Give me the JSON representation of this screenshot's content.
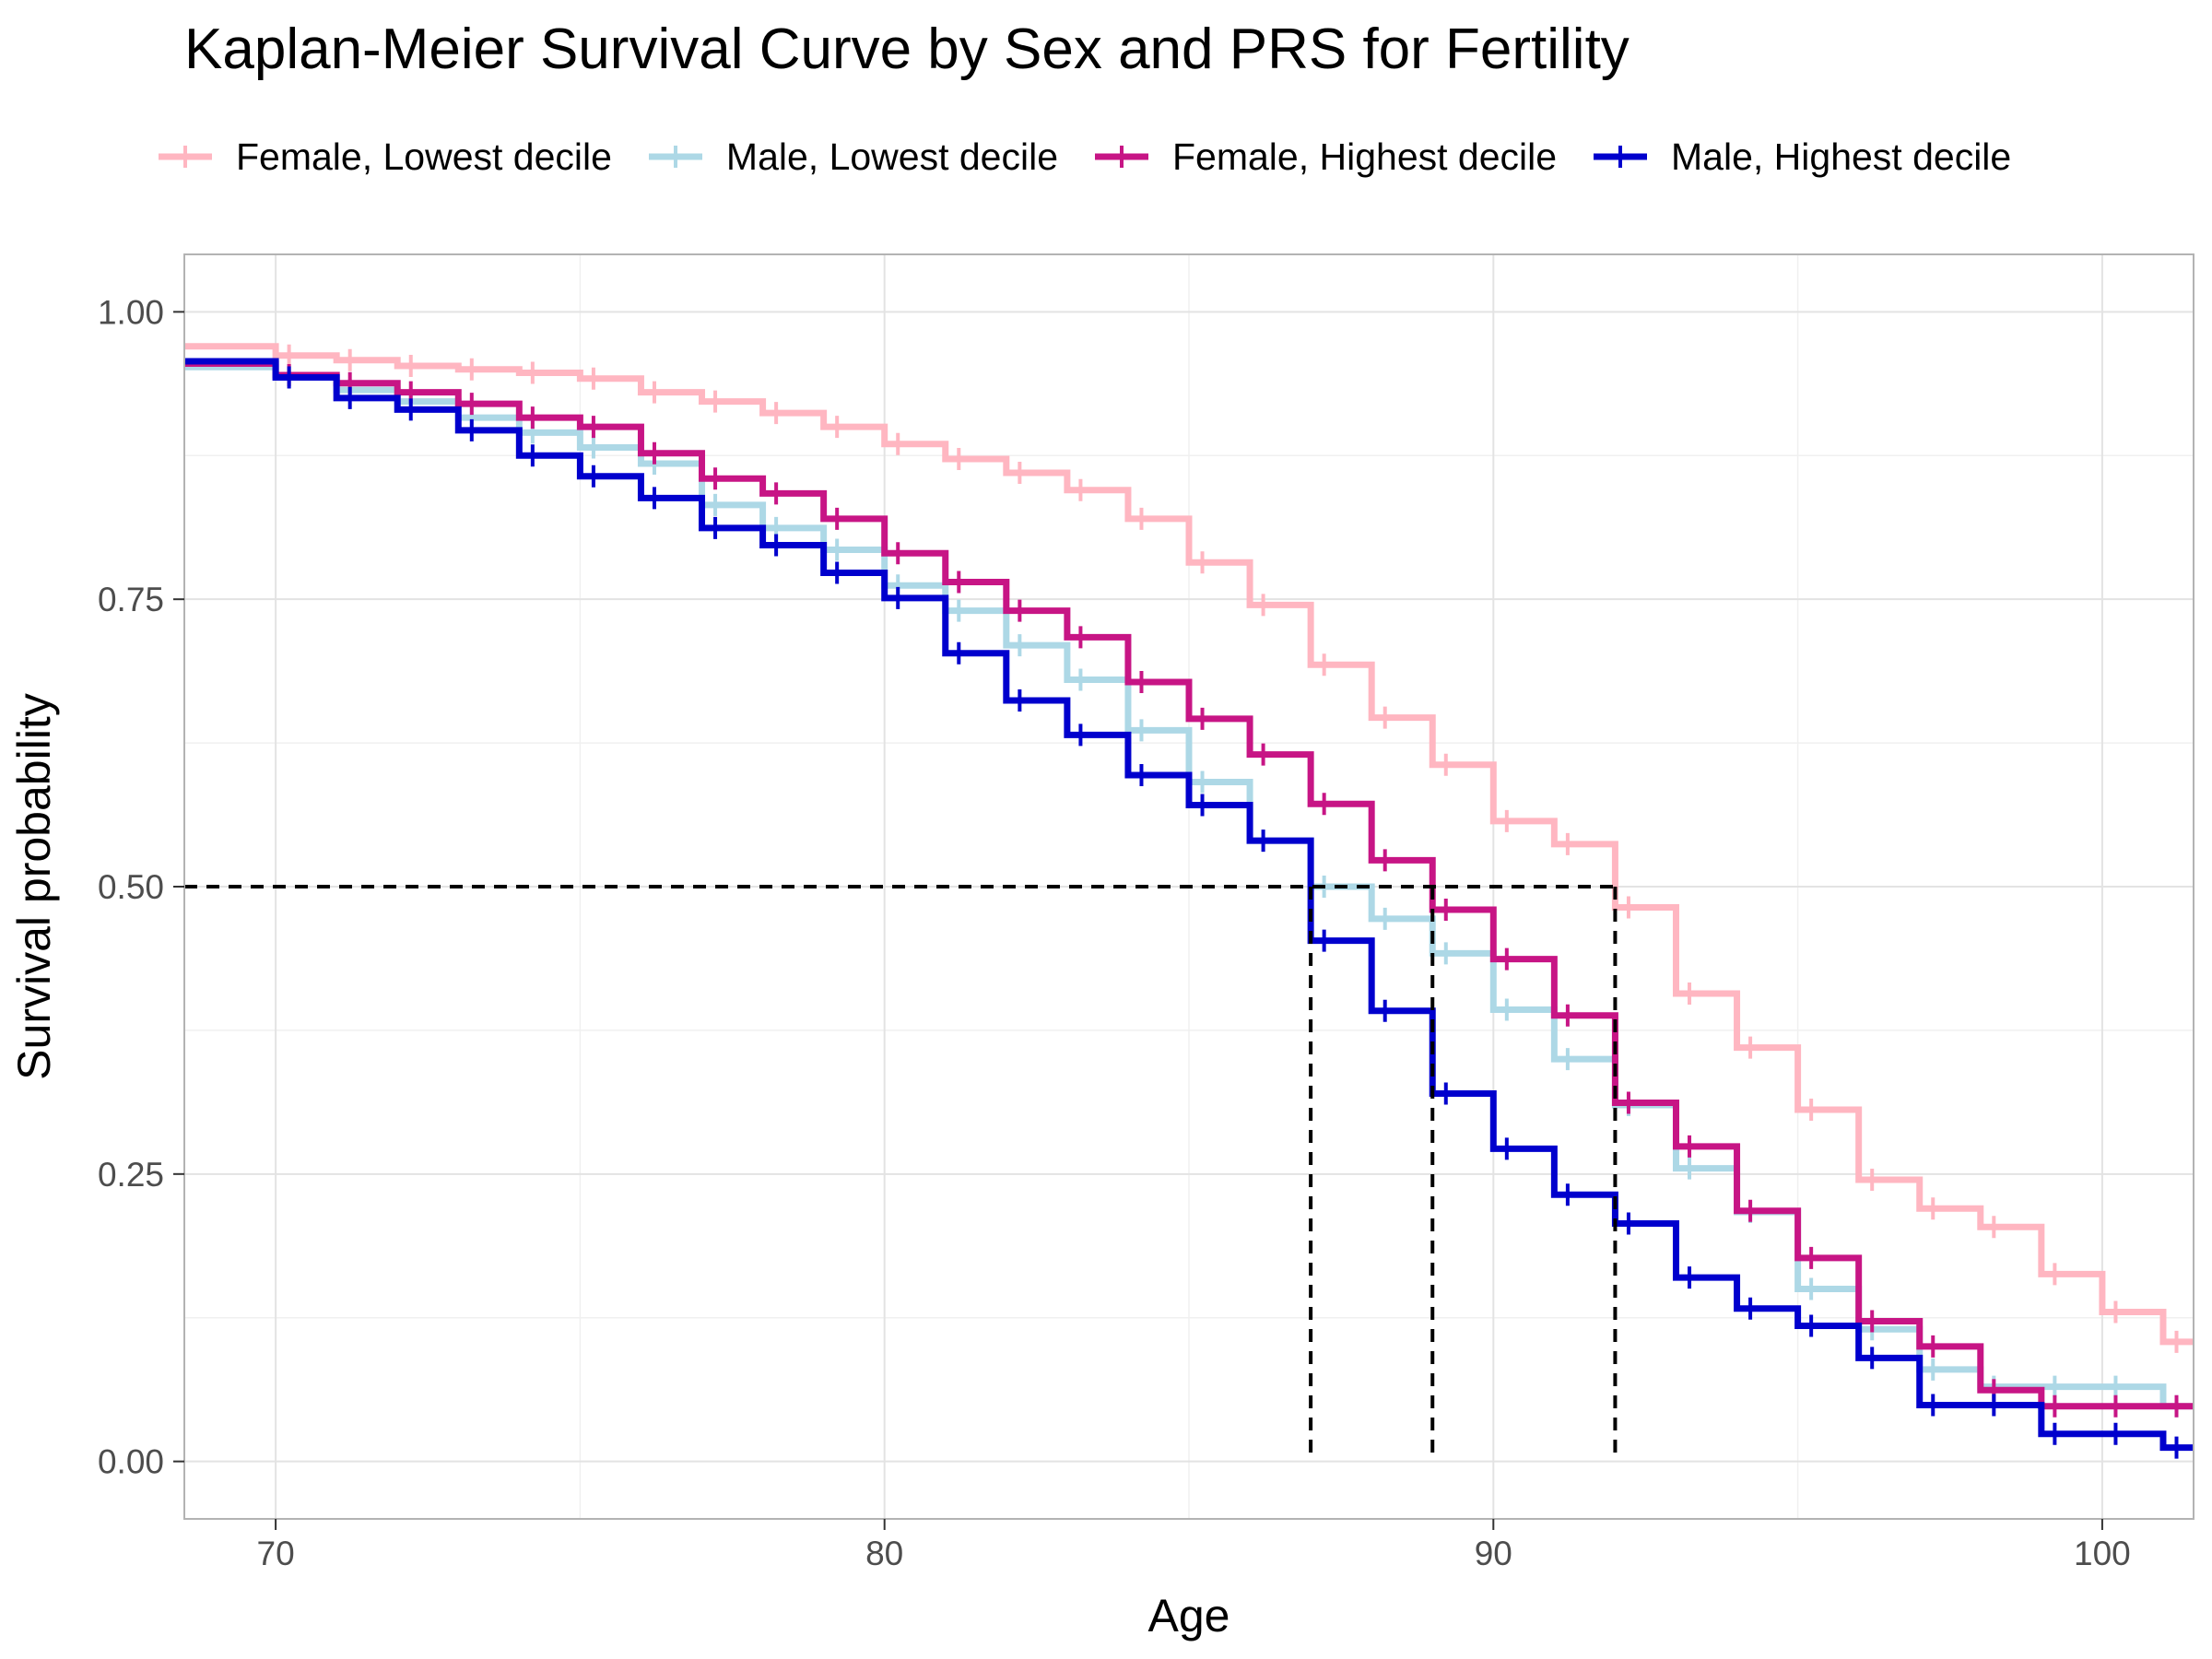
{
  "chart_data": {
    "type": "line",
    "step": true,
    "title": "Kaplan-Meier Survival Curve by Sex and PRS for Fertility",
    "xlabel": "Age",
    "ylabel": "Survival probability",
    "xlim": [
      68.5,
      101.5
    ],
    "ylim": [
      -0.05,
      1.05
    ],
    "x_ticks": [
      70,
      80,
      90,
      100
    ],
    "x_tick_labels": [
      "70",
      "80",
      "90",
      "100"
    ],
    "y_ticks": [
      0,
      0.25,
      0.5,
      0.75,
      1.0
    ],
    "y_tick_labels": [
      "0.00",
      "0.25",
      "0.50",
      "0.75",
      "1.00"
    ],
    "grid": true,
    "legend_position": "top",
    "median_line": {
      "y": 0.5,
      "x_values": [
        87,
        89,
        92
      ]
    },
    "series": [
      {
        "name": "Female, Lowest decile",
        "color": "#FFB6C1",
        "x": [
          68.5,
          70,
          71,
          72,
          73,
          74,
          75,
          76,
          77,
          78,
          79,
          80,
          81,
          82,
          83,
          84,
          85,
          86,
          87,
          88,
          89,
          90,
          91,
          92,
          93,
          94,
          95,
          96,
          97,
          98,
          99,
          100,
          101,
          101.5
        ],
        "y": [
          0.97,
          0.962,
          0.958,
          0.953,
          0.95,
          0.947,
          0.942,
          0.93,
          0.922,
          0.912,
          0.9,
          0.885,
          0.872,
          0.86,
          0.845,
          0.82,
          0.782,
          0.745,
          0.693,
          0.647,
          0.606,
          0.557,
          0.537,
          0.482,
          0.407,
          0.36,
          0.306,
          0.245,
          0.22,
          0.204,
          0.163,
          0.13,
          0.104,
          0.104
        ]
      },
      {
        "name": "Male, Lowest decile",
        "color": "#ADD8E6",
        "x": [
          68.5,
          70,
          71,
          72,
          73,
          74,
          75,
          76,
          77,
          78,
          79,
          80,
          81,
          82,
          83,
          84,
          85,
          86,
          87,
          88,
          89,
          90,
          91,
          92,
          93,
          94,
          95,
          96,
          97,
          98,
          99,
          100,
          101,
          101.5
        ],
        "y": [
          0.952,
          0.945,
          0.932,
          0.922,
          0.908,
          0.895,
          0.882,
          0.868,
          0.832,
          0.812,
          0.793,
          0.762,
          0.74,
          0.71,
          0.68,
          0.636,
          0.591,
          0.54,
          0.5,
          0.472,
          0.442,
          0.393,
          0.35,
          0.31,
          0.255,
          0.217,
          0.15,
          0.115,
          0.08,
          0.065,
          0.065,
          0.065,
          0.048,
          0.048
        ]
      },
      {
        "name": "Female, Highest decile",
        "color": "#C71585",
        "x": [
          68.5,
          70,
          71,
          72,
          73,
          74,
          75,
          76,
          77,
          78,
          79,
          80,
          81,
          82,
          83,
          84,
          85,
          86,
          87,
          88,
          89,
          90,
          91,
          92,
          93,
          94,
          95,
          96,
          97,
          98,
          99,
          100,
          101,
          101.5
        ],
        "y": [
          0.955,
          0.945,
          0.938,
          0.93,
          0.92,
          0.908,
          0.9,
          0.877,
          0.855,
          0.842,
          0.82,
          0.79,
          0.765,
          0.74,
          0.717,
          0.678,
          0.646,
          0.615,
          0.572,
          0.523,
          0.48,
          0.437,
          0.388,
          0.312,
          0.274,
          0.218,
          0.177,
          0.122,
          0.1,
          0.062,
          0.048,
          0.048,
          0.048,
          0.048
        ]
      },
      {
        "name": "Male, Highest decile",
        "color": "#0000CD",
        "x": [
          68.5,
          70,
          71,
          72,
          73,
          74,
          75,
          76,
          77,
          78,
          79,
          80,
          81,
          82,
          83,
          84,
          85,
          86,
          87,
          88,
          89,
          90,
          91,
          92,
          93,
          94,
          95,
          96,
          97,
          98,
          99,
          100,
          101,
          101.5
        ],
        "y": [
          0.957,
          0.943,
          0.925,
          0.915,
          0.897,
          0.875,
          0.857,
          0.838,
          0.812,
          0.797,
          0.773,
          0.751,
          0.703,
          0.662,
          0.632,
          0.597,
          0.571,
          0.54,
          0.453,
          0.392,
          0.32,
          0.272,
          0.232,
          0.207,
          0.16,
          0.133,
          0.118,
          0.09,
          0.049,
          0.049,
          0.024,
          0.024,
          0.012,
          0.012
        ]
      }
    ]
  }
}
